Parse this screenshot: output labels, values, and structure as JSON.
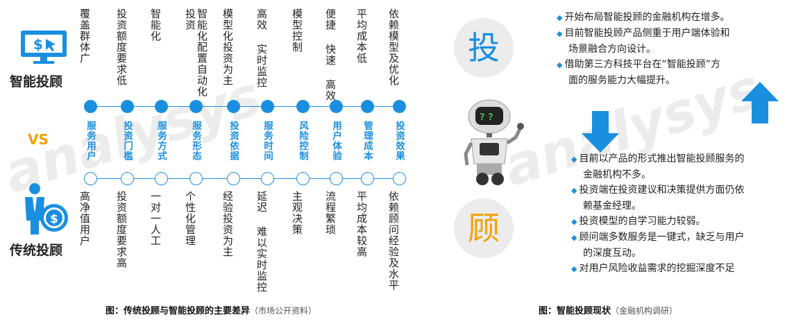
{
  "left": {
    "smart_label": "智能投顾",
    "traditional_label": "传统投顾",
    "vs_label": "VS",
    "columns": [
      {
        "smart": "覆盖群体广",
        "category": "服务用户",
        "traditional": "高净值用户"
      },
      {
        "smart": "投资额度要求低",
        "category": "投资门槛",
        "traditional": "投资额度要求高"
      },
      {
        "smart": "智能化",
        "category": "服务方式",
        "traditional": "一对一人工"
      },
      {
        "smart": "智能化配置自动化投资",
        "category": "服务形态",
        "traditional": "个性化管理"
      },
      {
        "smart": "模型化投资为主",
        "category": "投资依据",
        "traditional": "经验投资为主"
      },
      {
        "smart": "高效 实时监控",
        "category": "服务时间",
        "traditional": "延迟 难以实时监控"
      },
      {
        "smart": "模型控制",
        "category": "风险控制",
        "traditional": "主观决策"
      },
      {
        "smart": "便捷 快速 高效",
        "category": "用户体验",
        "traditional": "流程繁琐"
      },
      {
        "smart": "平均成本低",
        "category": "管理成本",
        "traditional": "平均成本较高"
      },
      {
        "smart": "依赖模型及优化",
        "category": "投资效果",
        "traditional": "依赖顾问经验及水平"
      }
    ],
    "caption": "图：传统投顾与智能投顾的主要差异",
    "caption_source": "（市场公开资料）",
    "monitor_icon_text": "$"
  },
  "right": {
    "top_char": "投",
    "bottom_char": "顾",
    "top_bullets": [
      {
        "text": "开始布局智能投顾的金融机构在增多。"
      },
      {
        "text": "目前智能投顾产品侧重于用户端体验和",
        "cont": "场景融合方向设计。"
      },
      {
        "text": "借助第三方科技平台在“智能投顾”方",
        "cont": "面的服务能力大幅提升。"
      }
    ],
    "bottom_bullets": [
      {
        "text": "目前以产品的形式推出智能投顾服务的",
        "cont": "金融机构不多。"
      },
      {
        "text": "投资端在投资建议和决策提供方面仍依",
        "cont": "赖基金经理。"
      },
      {
        "text": "投资模型的自学习能力较弱。"
      },
      {
        "text": "顾问端多数服务是一键式，缺乏与用户",
        "cont": "的深度互动。"
      },
      {
        "text": "对用户风险收益需求的挖掘深度不足"
      }
    ],
    "caption": "图：智能投顾现状",
    "caption_source": "（金融机构调研）",
    "robot_eyes": "? ?",
    "bullet_marker": "◆"
  },
  "colors": {
    "accent": "#1a8fe0",
    "orange": "#f5a000",
    "vs": "#f5a000"
  }
}
